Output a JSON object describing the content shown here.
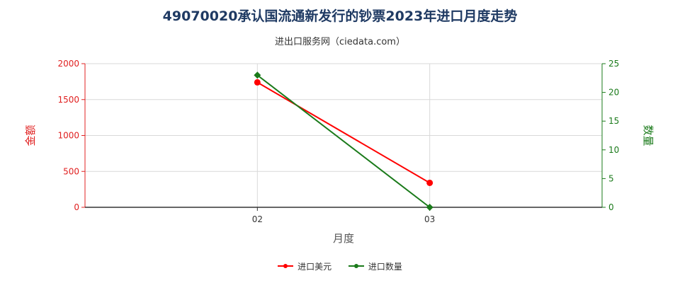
{
  "title": "49070020承认国流通新发行的钞票2023年进口月度走势",
  "subtitle": "进出口服务网（ciedata.com）",
  "chart_data": {
    "type": "line",
    "xlabel": "月度",
    "categories": [
      "02",
      "03"
    ],
    "y_left": {
      "label": "金额",
      "ticks": [
        "0",
        "500",
        "1000",
        "1500",
        "2000"
      ],
      "range": [
        0,
        2000
      ],
      "color": "#e02020"
    },
    "y_right": {
      "label": "数量",
      "ticks": [
        "0",
        "5",
        "10",
        "15",
        "20",
        "25"
      ],
      "range": [
        0,
        25
      ],
      "color": "#1a7a1a"
    },
    "series": [
      {
        "name": "进口美元",
        "axis": "left",
        "color": "#ff0000",
        "marker": "circle",
        "values": [
          1740,
          340
        ]
      },
      {
        "name": "进口数量",
        "axis": "right",
        "color": "#1a7a1a",
        "marker": "diamond",
        "values": [
          23,
          0
        ]
      }
    ],
    "grid": true,
    "legend": "bottom"
  }
}
